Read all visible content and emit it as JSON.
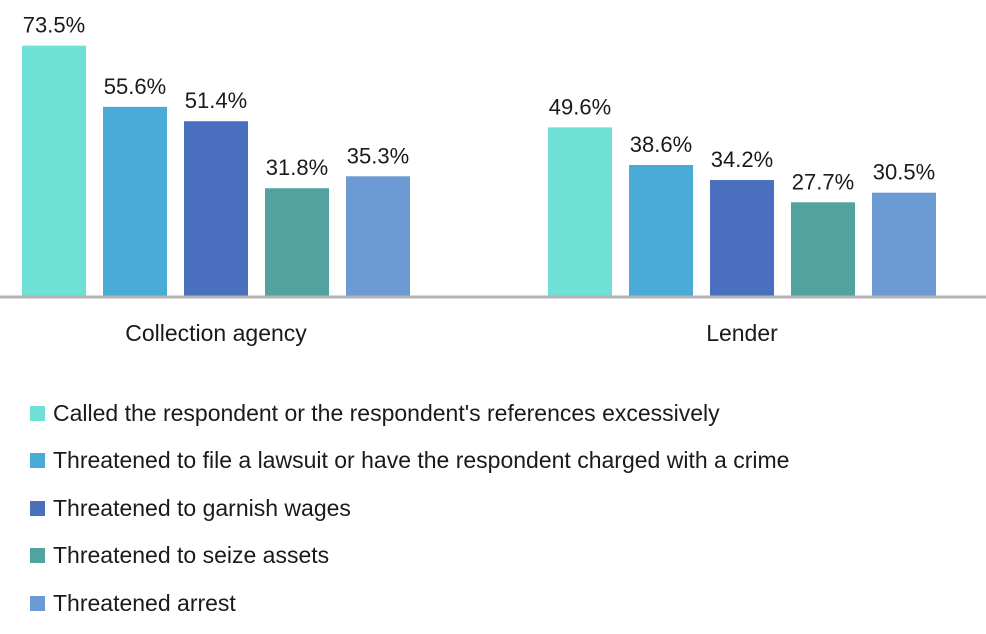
{
  "chart_data": {
    "type": "bar",
    "categories": [
      "Collection agency",
      "Lender"
    ],
    "series": [
      {
        "name": "Called the respondent or the respondent's references excessively",
        "color": "#6ee0d5",
        "values": [
          73.5,
          49.6
        ],
        "labels": [
          "73.5%",
          "49.6%"
        ]
      },
      {
        "name": "Threatened to file a lawsuit or have the respondent charged with a crime",
        "color": "#4aabd9",
        "values": [
          55.6,
          38.6
        ],
        "labels": [
          "55.6%",
          "38.6%"
        ]
      },
      {
        "name": "Threatened to garnish wages",
        "color": "#4a6fbf",
        "values": [
          51.4,
          34.2
        ],
        "labels": [
          "51.4%",
          "34.2%"
        ]
      },
      {
        "name": "Threatened to seize assets",
        "color": "#52a39f",
        "values": [
          31.8,
          27.7
        ],
        "labels": [
          "31.8%",
          "27.7%"
        ]
      },
      {
        "name": "Threatened arrest",
        "color": "#6b9bd2",
        "values": [
          35.3,
          30.5
        ],
        "labels": [
          "35.3%",
          "30.5%"
        ]
      }
    ],
    "value_suffix": "%",
    "y_axis_visible": false,
    "grid": false,
    "legend_position": "bottom-left"
  }
}
